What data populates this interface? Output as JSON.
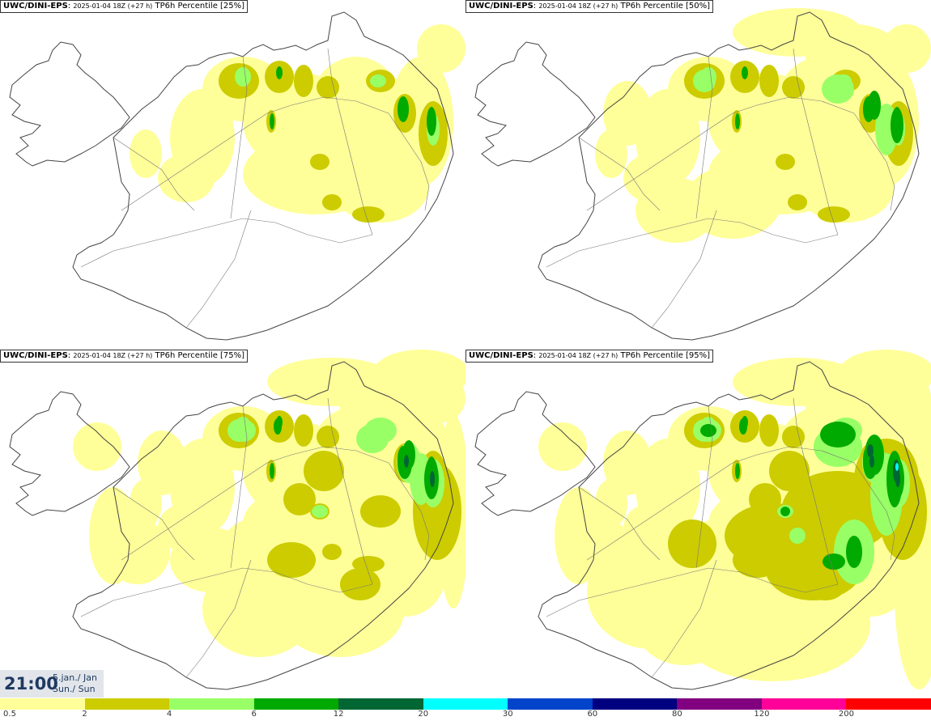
{
  "colors": {
    "legend": [
      "#ffff99",
      "#cccc00",
      "#99ff66",
      "#00aa00",
      "#006633",
      "#00ffff",
      "#0044cc",
      "#000080",
      "#800080",
      "#ff0099",
      "#ff0000"
    ],
    "lightYellow": "#ffff99",
    "olive": "#cccc00",
    "lightGreen": "#99ff66",
    "green": "#00aa00",
    "darkGreen": "#006633",
    "cyan": "#00ffff",
    "coastline": "#444444"
  },
  "panels": [
    {
      "source": "UWC/DINI-EPS",
      "run": "2025-01-04 18Z (+27 h)",
      "title": "TP6h Percentile [25%]",
      "level": 1
    },
    {
      "source": "UWC/DINI-EPS",
      "run": "2025-01-04 18Z (+27 h)",
      "title": "TP6h Percentile [50%]",
      "level": 2
    },
    {
      "source": "UWC/DINI-EPS",
      "run": "2025-01-04 18Z (+27 h)",
      "title": "TP6h Percentile [75%]",
      "level": 3
    },
    {
      "source": "UWC/DINI-EPS",
      "run": "2025-01-04 18Z (+27 h)",
      "title": "TP6h Percentile [95%]",
      "level": 4
    }
  ],
  "time": {
    "clock": "21:00",
    "date_line": "5.jan./ Jan",
    "day_line": "Sun./ Sun"
  },
  "legend": {
    "labels": [
      "0.5",
      "2",
      "4",
      "6",
      "12",
      "20",
      "30",
      "60",
      "80",
      "120",
      "200"
    ]
  }
}
